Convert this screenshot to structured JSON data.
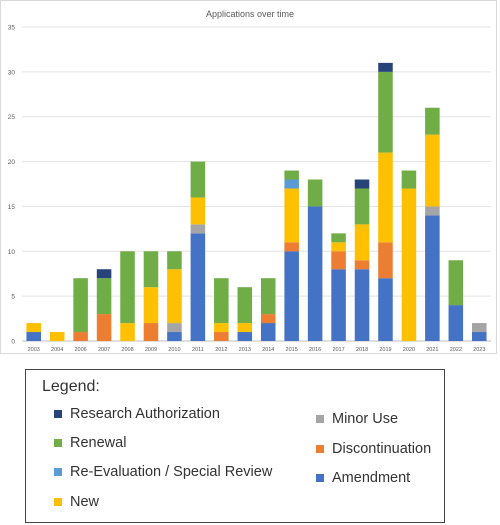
{
  "chart_data": {
    "type": "bar",
    "stacked": true,
    "title": "Applications over time",
    "xlabel": "",
    "ylabel": "",
    "ylim": [
      0,
      35
    ],
    "yticks": [
      0,
      5,
      10,
      15,
      20,
      25,
      30,
      35
    ],
    "grid": true,
    "categories": [
      "2003",
      "2004",
      "2006",
      "2007",
      "2008",
      "2009",
      "2010",
      "2011",
      "2012",
      "2013",
      "2014",
      "2015",
      "2016",
      "2017",
      "2018",
      "2019",
      "2020",
      "2021",
      "2022",
      "2023"
    ],
    "series": [
      {
        "name": "Amendment",
        "color": "#4472c4",
        "values": [
          1,
          0,
          0,
          0,
          0,
          0,
          1,
          12,
          0,
          1,
          2,
          10,
          15,
          8,
          8,
          7,
          0,
          14,
          4,
          1
        ]
      },
      {
        "name": "Discontinuation",
        "color": "#ed7d31",
        "values": [
          0,
          0,
          1,
          3,
          0,
          2,
          0,
          0,
          1,
          0,
          1,
          1,
          0,
          2,
          1,
          4,
          0,
          0,
          0,
          0
        ]
      },
      {
        "name": "Minor Use",
        "color": "#a5a5a5",
        "values": [
          0,
          0,
          0,
          0,
          0,
          0,
          1,
          1,
          0,
          0,
          0,
          0,
          0,
          0,
          0,
          0,
          0,
          1,
          0,
          1
        ]
      },
      {
        "name": "New",
        "color": "#ffc000",
        "values": [
          1,
          1,
          0,
          0,
          2,
          4,
          6,
          3,
          1,
          1,
          0,
          6,
          0,
          1,
          4,
          10,
          17,
          8,
          0,
          0
        ]
      },
      {
        "name": "Re-Evaluation / Special Review",
        "color": "#5b9bd5",
        "values": [
          0,
          0,
          0,
          0,
          0,
          0,
          0,
          0,
          0,
          0,
          0,
          1,
          0,
          0,
          0,
          0,
          0,
          0,
          0,
          0
        ]
      },
      {
        "name": "Renewal",
        "color": "#70ad47",
        "values": [
          0,
          0,
          6,
          4,
          8,
          4,
          2,
          4,
          5,
          4,
          4,
          1,
          3,
          1,
          4,
          9,
          2,
          3,
          5,
          0
        ]
      },
      {
        "name": "Research Authorization",
        "color": "#264478",
        "values": [
          0,
          0,
          0,
          1,
          0,
          0,
          0,
          0,
          0,
          0,
          0,
          0,
          0,
          0,
          1,
          1,
          0,
          0,
          0,
          0
        ]
      }
    ]
  },
  "legend": {
    "title": "Legend:",
    "entries": [
      {
        "label": "Research Authorization",
        "color": "#264478"
      },
      {
        "label": "Renewal",
        "color": "#70ad47"
      },
      {
        "label": "Re-Evaluation / Special Review",
        "color": "#5b9bd5"
      },
      {
        "label": "New",
        "color": "#ffc000"
      },
      {
        "label": "Minor Use",
        "color": "#a5a5a5"
      },
      {
        "label": "Discontinuation",
        "color": "#ed7d31"
      },
      {
        "label": "Amendment",
        "color": "#4472c4"
      }
    ]
  }
}
